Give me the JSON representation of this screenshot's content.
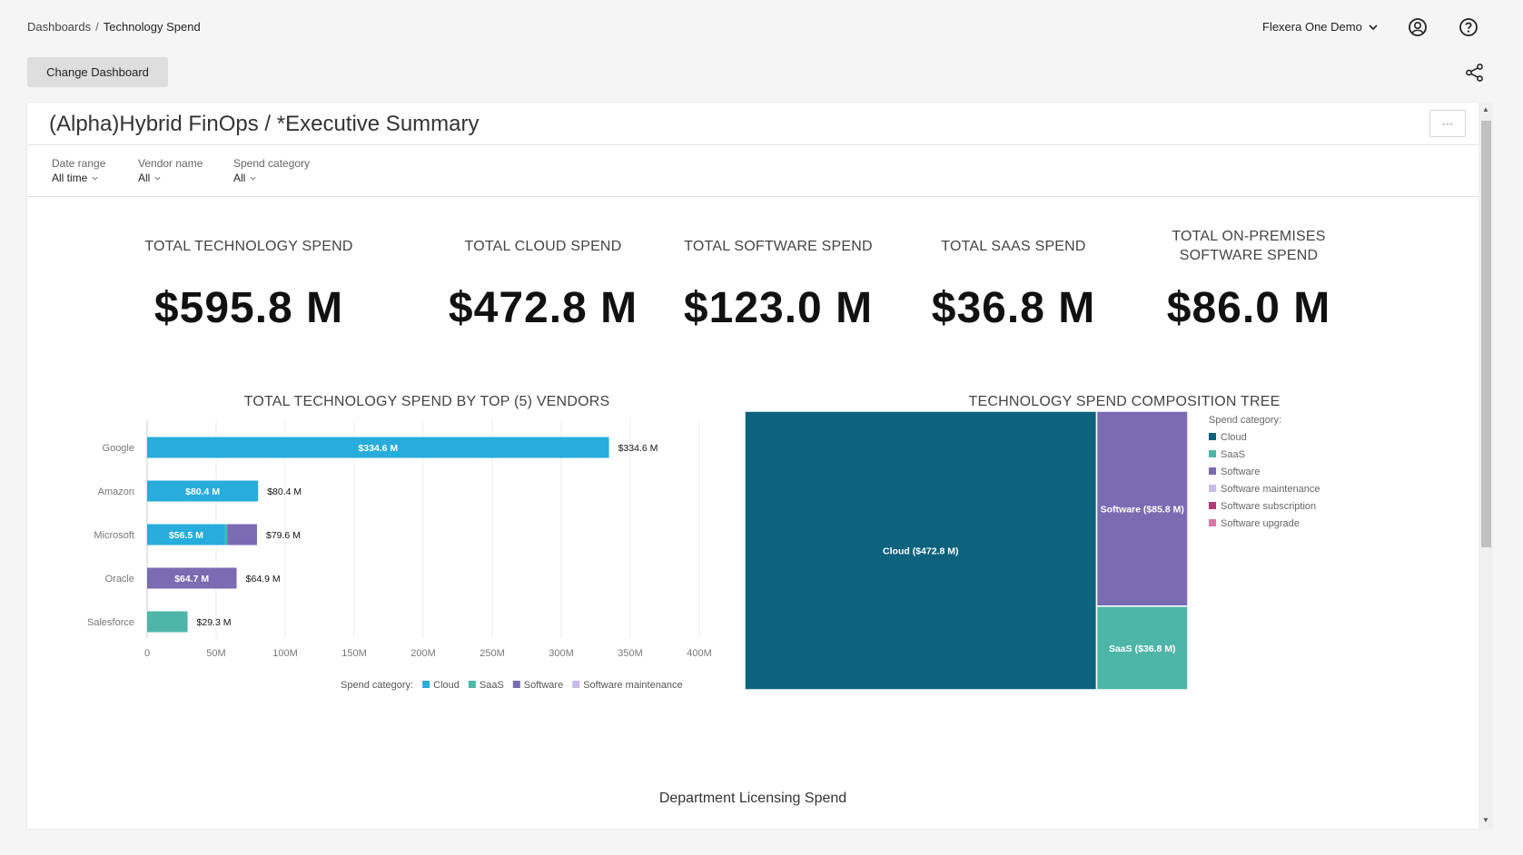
{
  "breadcrumb": {
    "parent": "Dashboards",
    "separator": "/",
    "current": "Technology Spend"
  },
  "header": {
    "org_name": "Flexera One Demo"
  },
  "toolbar": {
    "change_dashboard_label": "Change Dashboard"
  },
  "dashboard": {
    "title": "(Alpha)Hybrid FinOps / *Executive Summary",
    "menu_label": "···",
    "filters": [
      {
        "label": "Date range",
        "value": "All time"
      },
      {
        "label": "Vendor name",
        "value": "All"
      },
      {
        "label": "Spend category",
        "value": "All"
      }
    ],
    "kpis": [
      {
        "title": "TOTAL TECHNOLOGY SPEND",
        "value": "$595.8 M"
      },
      {
        "title": "TOTAL CLOUD SPEND",
        "value": "$472.8 M"
      },
      {
        "title": "TOTAL SOFTWARE SPEND",
        "value": "$123.0 M"
      },
      {
        "title": "TOTAL SAAS SPEND",
        "value": "$36.8 M"
      },
      {
        "title": "TOTAL ON-PREMISES SOFTWARE SPEND",
        "value": "$86.0 M"
      }
    ],
    "bottom_title": "Department Licensing Spend"
  },
  "colors": {
    "Cloud": "#27acdc",
    "SaaS": "#4db6a8",
    "Software": "#7b6bb3",
    "Software maintenance": "#c9b9e6",
    "Software subscription": "#b33a78",
    "Software upgrade": "#d978a8",
    "TreeCloud": "#0d627e"
  },
  "chart_data": [
    {
      "type": "bar",
      "title": "TOTAL TECHNOLOGY SPEND BY TOP (5) VENDORS",
      "categories": [
        "Google",
        "Amazon",
        "Microsoft",
        "Oracle",
        "Salesforce"
      ],
      "series": [
        {
          "name": "Cloud",
          "values": [
            334.6,
            80.4,
            56.5,
            0,
            0
          ]
        },
        {
          "name": "SaaS",
          "values": [
            0,
            0,
            1.5,
            0,
            29.3
          ]
        },
        {
          "name": "Software",
          "values": [
            0,
            0,
            21.6,
            64.7,
            0
          ]
        },
        {
          "name": "Software maintenance",
          "values": [
            0,
            0,
            0,
            0.2,
            0
          ]
        }
      ],
      "bar_labels": [
        "$334.6 M",
        "$80.4 M",
        "$56.5 M",
        "$64.7 M",
        ""
      ],
      "totals": [
        "$334.6 M",
        "$80.4 M",
        "$79.6 M",
        "$64.9 M",
        "$29.3 M"
      ],
      "x_ticks": [
        "0",
        "50M",
        "100M",
        "150M",
        "200M",
        "250M",
        "300M",
        "350M",
        "400M"
      ],
      "xlim": [
        0,
        400
      ],
      "legend_title": "Spend category:",
      "legend": [
        "Cloud",
        "SaaS",
        "Software",
        "Software maintenance"
      ],
      "legend_position": "bottom",
      "grid": true
    },
    {
      "type": "treemap",
      "title": "TECHNOLOGY SPEND COMPOSITION TREE",
      "items": [
        {
          "name": "Cloud",
          "label": "Cloud ($472.8 M)",
          "value": 472.8
        },
        {
          "name": "Software",
          "label": "Software ($85.8 M)",
          "value": 85.8
        },
        {
          "name": "SaaS",
          "label": "SaaS ($36.8 M)",
          "value": 36.8
        }
      ],
      "legend_title": "Spend category:",
      "legend": [
        "Cloud",
        "SaaS",
        "Software",
        "Software maintenance",
        "Software subscription",
        "Software upgrade"
      ],
      "legend_position": "right"
    }
  ]
}
